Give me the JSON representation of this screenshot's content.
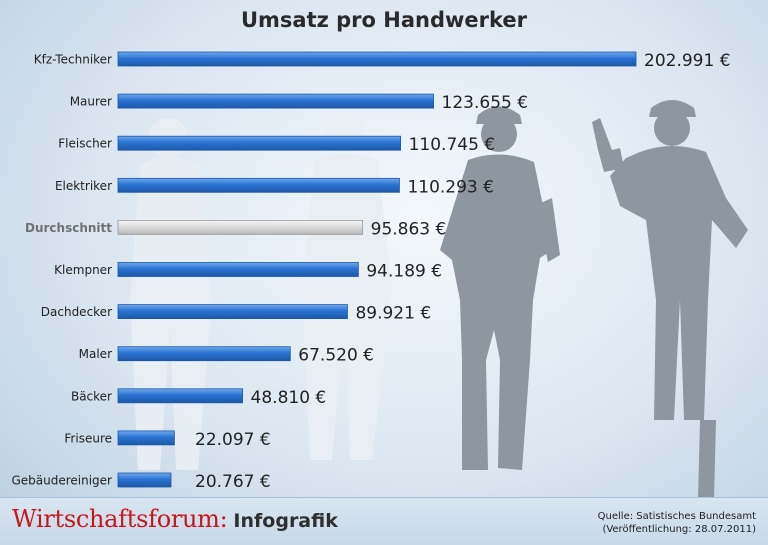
{
  "chart_data": {
    "type": "bar",
    "orientation": "horizontal",
    "title": "Umsatz pro Handwerker",
    "categories": [
      "Kfz-Techniker",
      "Maurer",
      "Fleischer",
      "Elektriker",
      "Durchschnitt",
      "Klempner",
      "Dachdecker",
      "Maler",
      "Bäcker",
      "Friseure",
      "Gebäudereiniger"
    ],
    "values": [
      202991,
      123655,
      110745,
      110293,
      95863,
      94189,
      89921,
      67520,
      48810,
      22097,
      20767
    ],
    "value_labels": [
      "202.991 €",
      "123.655 €",
      "110.745 €",
      "110.293 €",
      "95.863 €",
      "94.189 €",
      "89.921 €",
      "67.520 €",
      "48.810 €",
      "22.097 €",
      "20.767 €"
    ],
    "highlight_category": "Durchschnitt",
    "xlabel": "",
    "ylabel": "",
    "grid": false,
    "legend": "none"
  },
  "colors": {
    "bar": "#2a73d2",
    "bar_dark": "#1d58a8",
    "highlight_bar": "#d8d8d8",
    "highlight_label": "#707070",
    "label": "#222222",
    "silhouette": "#8e979f",
    "brand_red": "#c8141b"
  },
  "footer": {
    "brand": "Wirtschaftsforum:",
    "brand_sub": "Infografik",
    "source_line1": "Quelle: Satistisches Bundesamt",
    "source_line2": "(Veröffentlichung: 28.07.2011)"
  }
}
